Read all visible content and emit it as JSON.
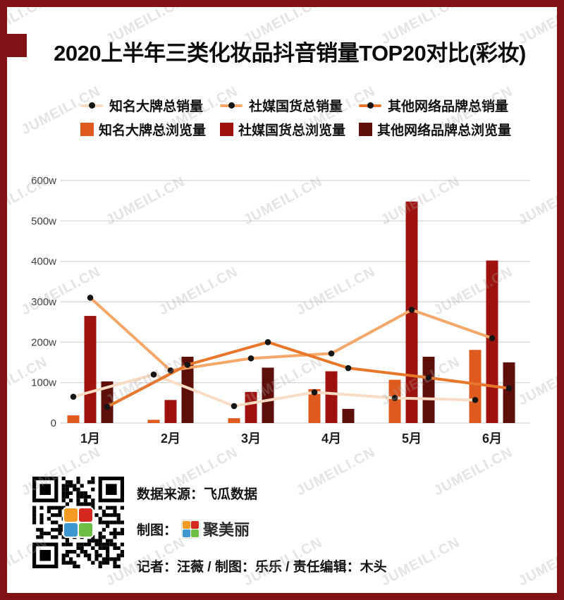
{
  "frame": {
    "color": "#811114"
  },
  "watermark": {
    "text": "JUMEILI.CN"
  },
  "title": {
    "text": "2020上半年三类化妆品抖音销量TOP20对比(彩妆)"
  },
  "chart_data": {
    "type": "bar+line combo",
    "categories": [
      "1月",
      "2月",
      "3月",
      "4月",
      "5月",
      "6月"
    ],
    "unit": "w (万)",
    "bar_series": [
      {
        "name": "知名大牌总浏览量",
        "color": "#DE5A1F",
        "values": [
          19,
          8,
          12,
          84,
          107,
          181
        ]
      },
      {
        "name": "社媒国货总浏览量",
        "color": "#9E1310",
        "values": [
          265,
          57,
          77,
          128,
          548,
          402
        ]
      },
      {
        "name": "其他网络品牌总浏览量",
        "color": "#5E0F0C",
        "values": [
          103,
          164,
          137,
          35,
          164,
          150
        ]
      }
    ],
    "line_series": [
      {
        "name": "知名大牌总销量",
        "color": "#F8DCC4",
        "values": [
          65,
          120,
          42,
          76,
          62,
          57
        ]
      },
      {
        "name": "社媒国货总销量",
        "color": "#F4A768",
        "values": [
          310,
          130,
          160,
          172,
          280,
          210
        ]
      },
      {
        "name": "其他网络品牌总销量",
        "color": "#E8762B",
        "values": [
          40,
          144,
          200,
          136,
          112,
          86
        ]
      }
    ],
    "marker_color": "#151515",
    "ylim": [
      0,
      600
    ],
    "yticks": [
      "0",
      "100w",
      "200w",
      "300w",
      "400w",
      "500w",
      "600w"
    ],
    "grid": true,
    "legend_position": "top"
  },
  "footer": {
    "source_line": "数据来源：飞瓜数据",
    "credit_label": "制图：",
    "brand_name": "聚美丽",
    "byline": "记者：汪薇 / 制图：乐乐 / 责任编辑：木头",
    "logo_colors": [
      "#F59A23",
      "#D5281E",
      "#3E97D1",
      "#6DBE45"
    ]
  }
}
